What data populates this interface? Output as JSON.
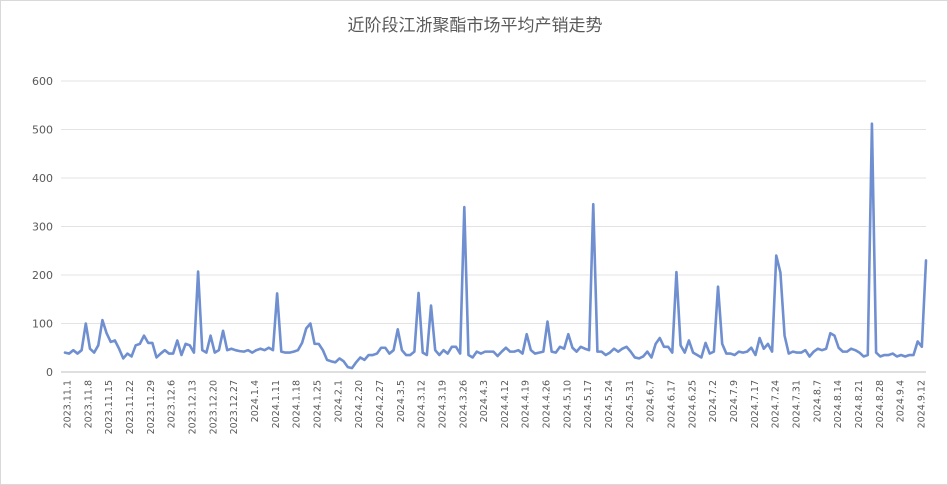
{
  "chart_data": {
    "type": "line",
    "title": "近阶段江浙聚酯市场平均产销走势",
    "xlabel": "",
    "ylabel": "",
    "ylim": [
      0,
      600
    ],
    "yticks": [
      0,
      100,
      200,
      300,
      400,
      500,
      600
    ],
    "grid": true,
    "legend": "none",
    "line_color": "#6f8fd0",
    "xtick_labels": [
      "2023.11.1",
      "2023.11.8",
      "2023.11.15",
      "2023.11.22",
      "2023.11.29",
      "2023.12.6",
      "2023.12.13",
      "2023.12.20",
      "2023.12.27",
      "2024.1.4",
      "2024.1.11",
      "2024.1.18",
      "2024.1.25",
      "2024.2.1",
      "2024.2.20",
      "2024.2.27",
      "2024.3.5",
      "2024.3.12",
      "2024.3.19",
      "2024.3.26",
      "2024.4.3",
      "2024.4.12",
      "2024.4.19",
      "2024.4.26",
      "2024.5.10",
      "2024.5.17",
      "2024.5.24",
      "2024.5.31",
      "2024.6.7",
      "2024.6.17",
      "2024.6.25",
      "2024.7.2",
      "2024.7.9",
      "2024.7.17",
      "2024.7.24",
      "2024.7.31",
      "2024.8.7",
      "2024.8.14",
      "2024.8.21",
      "2024.8.28",
      "2024.9.4",
      "2024.9.12"
    ],
    "values": [
      40,
      38,
      45,
      38,
      45,
      100,
      48,
      40,
      55,
      107,
      80,
      62,
      65,
      48,
      28,
      38,
      32,
      55,
      58,
      75,
      60,
      60,
      30,
      38,
      45,
      38,
      38,
      65,
      35,
      58,
      55,
      40,
      207,
      45,
      40,
      75,
      40,
      45,
      85,
      45,
      48,
      45,
      43,
      42,
      45,
      40,
      45,
      48,
      45,
      50,
      45,
      162,
      42,
      40,
      40,
      42,
      45,
      60,
      90,
      100,
      58,
      58,
      45,
      25,
      22,
      20,
      28,
      22,
      10,
      8,
      20,
      30,
      25,
      35,
      35,
      38,
      50,
      50,
      38,
      45,
      88,
      45,
      35,
      35,
      42,
      163,
      40,
      35,
      137,
      45,
      35,
      45,
      38,
      52,
      52,
      38,
      340,
      35,
      30,
      42,
      38,
      42,
      42,
      42,
      33,
      42,
      50,
      42,
      42,
      45,
      38,
      78,
      45,
      38,
      40,
      42,
      104,
      42,
      40,
      52,
      48,
      78,
      50,
      42,
      52,
      48,
      45,
      346,
      42,
      42,
      35,
      40,
      48,
      42,
      48,
      52,
      42,
      30,
      28,
      32,
      42,
      30,
      58,
      70,
      52,
      52,
      40,
      206,
      55,
      40,
      65,
      40,
      35,
      30,
      60,
      38,
      42,
      176,
      58,
      38,
      38,
      35,
      42,
      40,
      42,
      50,
      35,
      70,
      48,
      58,
      42,
      240,
      205,
      75,
      38,
      42,
      40,
      40,
      45,
      32,
      42,
      48,
      45,
      48,
      80,
      75,
      50,
      42,
      42,
      48,
      45,
      40,
      32,
      35,
      512,
      40,
      32,
      35,
      35,
      38,
      32,
      35,
      32,
      35,
      35,
      63,
      52,
      230
    ]
  }
}
